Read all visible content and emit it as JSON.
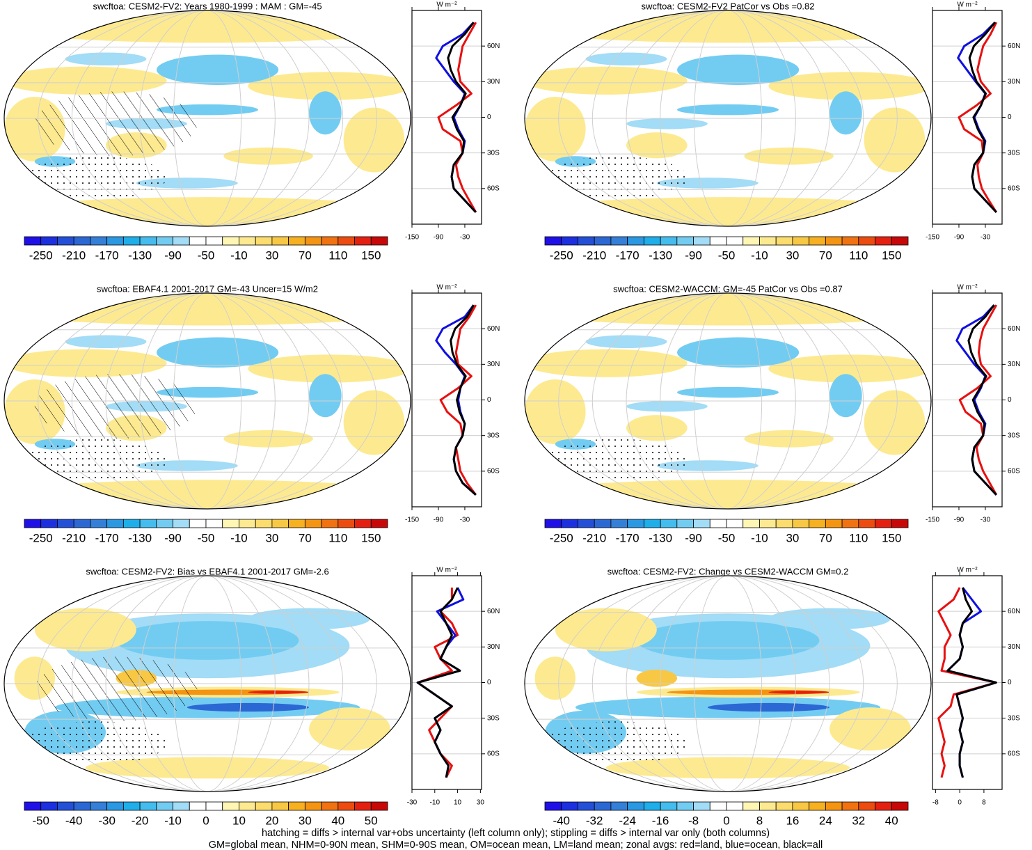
{
  "colormap": [
    "#2010e8",
    "#1c30e0",
    "#2450d8",
    "#2c68d4",
    "#3480d8",
    "#2a98e2",
    "#1eaeea",
    "#44bcee",
    "#72ccf2",
    "#a2dcf6",
    "#ffffff",
    "#ffffff",
    "#fff6b4",
    "#fdea90",
    "#fbdc6c",
    "#f8c844",
    "#f6b020",
    "#f49412",
    "#f07210",
    "#ec4c10",
    "#e42010",
    "#c80808"
  ],
  "chart_data": [
    {
      "type": "line",
      "title": "swcftoa: CESM2-FV2: Years 1980-1999 : MAM : GM=-45",
      "map": "mean",
      "hatch": true,
      "units": "W m⁻²",
      "xlim": [
        -150,
        8
      ],
      "xticks": [
        -150,
        -90,
        -30
      ],
      "ylim": [
        -90,
        90
      ],
      "yticks": [
        {
          "value": 60,
          "label": "60N"
        },
        {
          "value": 30,
          "label": "30N"
        },
        0,
        {
          "value": -30,
          "label": "30S"
        },
        {
          "value": -60,
          "label": "60S"
        }
      ],
      "colorbar_ticks": [
        -250,
        -210,
        -170,
        -130,
        -90,
        -50,
        -10,
        30,
        70,
        110,
        150
      ],
      "latitudes": [
        -80,
        -70,
        -60,
        -50,
        -40,
        -30,
        -20,
        -10,
        0,
        10,
        20,
        30,
        40,
        50,
        60,
        70,
        80
      ],
      "series": [
        {
          "color": "#e81010",
          "values": [
            -5,
            -20,
            -35,
            -45,
            -50,
            -35,
            -40,
            -80,
            -90,
            -50,
            -15,
            -40,
            -45,
            -40,
            -35,
            -20,
            -5
          ]
        },
        {
          "color": "#1010e0",
          "values": [
            -5,
            -30,
            -55,
            -60,
            -55,
            -35,
            -30,
            -45,
            -55,
            -40,
            -30,
            -55,
            -75,
            -95,
            -80,
            -35,
            -10
          ]
        },
        {
          "color": "#000000",
          "values": [
            -5,
            -30,
            -55,
            -60,
            -55,
            -35,
            -32,
            -48,
            -58,
            -40,
            -28,
            -50,
            -62,
            -68,
            -58,
            -30,
            -10
          ]
        }
      ]
    },
    {
      "type": "line",
      "title": "swcftoa: CESM2-FV2 PatCor vs Obs =0.82",
      "map": "mean",
      "hatch": false,
      "units": "W m⁻²",
      "xlim": [
        -150,
        8
      ],
      "xticks": [
        -150,
        -90,
        -30
      ],
      "ylim": [
        -90,
        90
      ],
      "yticks": [
        {
          "value": 60,
          "label": "60N"
        },
        {
          "value": 30,
          "label": "30N"
        },
        0,
        {
          "value": -30,
          "label": "30S"
        },
        {
          "value": -60,
          "label": "60S"
        }
      ],
      "colorbar_ticks": [
        -250,
        -210,
        -170,
        -130,
        -90,
        -50,
        -10,
        30,
        70,
        110,
        150
      ],
      "latitudes": [
        -80,
        -70,
        -60,
        -50,
        -40,
        -30,
        -20,
        -10,
        0,
        10,
        20,
        30,
        40,
        50,
        60,
        70,
        80
      ],
      "series": [
        {
          "color": "#e81010",
          "values": [
            -5,
            -22,
            -38,
            -45,
            -48,
            -35,
            -38,
            -78,
            -90,
            -50,
            -18,
            -40,
            -48,
            -42,
            -35,
            -18,
            -5
          ]
        },
        {
          "color": "#1010e0",
          "values": [
            -5,
            -30,
            -55,
            -60,
            -55,
            -35,
            -30,
            -45,
            -55,
            -40,
            -30,
            -52,
            -72,
            -92,
            -78,
            -35,
            -8
          ]
        },
        {
          "color": "#000000",
          "values": [
            -5,
            -30,
            -55,
            -60,
            -55,
            -35,
            -32,
            -47,
            -57,
            -40,
            -29,
            -50,
            -60,
            -66,
            -56,
            -30,
            -8
          ]
        }
      ]
    },
    {
      "type": "line",
      "title": "swcftoa: EBAF4.1 2001-2017 GM=-43 Uncer=15 W/m2",
      "map": "mean",
      "hatch": true,
      "units": "W m⁻²",
      "xlim": [
        -150,
        8
      ],
      "xticks": [
        -150,
        -90,
        -30
      ],
      "ylim": [
        -90,
        90
      ],
      "yticks": [
        {
          "value": 60,
          "label": "60N"
        },
        {
          "value": 30,
          "label": "30N"
        },
        0,
        {
          "value": -30,
          "label": "30S"
        },
        {
          "value": -60,
          "label": "60S"
        }
      ],
      "colorbar_ticks": [
        -250,
        -210,
        -170,
        -130,
        -90,
        -50,
        -10,
        30,
        70,
        110,
        150
      ],
      "latitudes": [
        -80,
        -70,
        -60,
        -50,
        -40,
        -30,
        -20,
        -10,
        0,
        10,
        20,
        30,
        40,
        50,
        60,
        70,
        80
      ],
      "series": [
        {
          "color": "#e81010",
          "values": [
            -5,
            -25,
            -40,
            -45,
            -50,
            -35,
            -40,
            -70,
            -85,
            -45,
            -15,
            -45,
            -50,
            -45,
            -40,
            -20,
            -5
          ]
        },
        {
          "color": "#1010e0",
          "values": [
            -5,
            -35,
            -50,
            -55,
            -50,
            -35,
            -30,
            -40,
            -45,
            -40,
            -30,
            -50,
            -75,
            -95,
            -80,
            -30,
            -10
          ]
        },
        {
          "color": "#000000",
          "values": [
            -5,
            -35,
            -50,
            -55,
            -50,
            -35,
            -30,
            -42,
            -48,
            -40,
            -28,
            -48,
            -58,
            -62,
            -52,
            -25,
            -10
          ]
        }
      ]
    },
    {
      "type": "line",
      "title": "swcftoa: CESM2-WACCM: GM=-45 PatCor vs Obs =0.87",
      "map": "mean",
      "hatch": false,
      "units": "W m⁻²",
      "xlim": [
        -150,
        8
      ],
      "xticks": [
        -150,
        -90,
        -30
      ],
      "ylim": [
        -90,
        90
      ],
      "yticks": [
        {
          "value": 60,
          "label": "60N"
        },
        {
          "value": 30,
          "label": "30N"
        },
        0,
        {
          "value": -30,
          "label": "30S"
        },
        {
          "value": -60,
          "label": "60S"
        }
      ],
      "colorbar_ticks": [
        -250,
        -210,
        -170,
        -130,
        -90,
        -50,
        -10,
        30,
        70,
        110,
        150
      ],
      "latitudes": [
        -80,
        -70,
        -60,
        -50,
        -40,
        -30,
        -20,
        -10,
        0,
        10,
        20,
        30,
        40,
        50,
        60,
        70,
        80
      ],
      "series": [
        {
          "color": "#e81010",
          "values": [
            -5,
            -20,
            -35,
            -45,
            -50,
            -35,
            -40,
            -75,
            -88,
            -48,
            -18,
            -40,
            -45,
            -42,
            -35,
            -20,
            -5
          ]
        },
        {
          "color": "#1010e0",
          "values": [
            -5,
            -30,
            -55,
            -60,
            -55,
            -35,
            -30,
            -45,
            -55,
            -40,
            -30,
            -55,
            -75,
            -95,
            -82,
            -35,
            -10
          ]
        },
        {
          "color": "#000000",
          "values": [
            -5,
            -30,
            -55,
            -60,
            -55,
            -35,
            -32,
            -48,
            -58,
            -42,
            -28,
            -50,
            -62,
            -68,
            -58,
            -30,
            -10
          ]
        }
      ]
    },
    {
      "type": "line",
      "title": "swcftoa: CESM2-FV2: Bias vs EBAF4.1 2001-2017 GM=-2.6",
      "map": "diff",
      "hatch": true,
      "units": "W m⁻²",
      "xlim": [
        -30,
        31
      ],
      "xticks": [
        -30,
        -10,
        10,
        30
      ],
      "ylim": [
        -90,
        90
      ],
      "yticks": [
        {
          "value": 60,
          "label": "60N"
        },
        {
          "value": 30,
          "label": "30N"
        },
        0,
        {
          "value": -30,
          "label": "30S"
        },
        {
          "value": -60,
          "label": "60S"
        }
      ],
      "colorbar_ticks": [
        -50,
        -40,
        -30,
        -20,
        -10,
        0,
        10,
        20,
        30,
        40,
        50
      ],
      "latitudes": [
        -80,
        -70,
        -60,
        -50,
        -40,
        -30,
        -20,
        -10,
        0,
        10,
        20,
        30,
        40,
        50,
        60,
        70,
        80
      ],
      "series": [
        {
          "color": "#e81010",
          "values": [
            0,
            5,
            -5,
            -10,
            -15,
            -5,
            5,
            -10,
            -25,
            5,
            -5,
            -10,
            10,
            5,
            -5,
            5,
            5
          ]
        },
        {
          "color": "#1010e0",
          "values": [
            0,
            2,
            -5,
            -10,
            -5,
            -10,
            5,
            -10,
            -25,
            12,
            -5,
            0,
            8,
            0,
            -8,
            15,
            10
          ]
        },
        {
          "color": "#000000",
          "values": [
            0,
            2,
            -5,
            -10,
            -5,
            -10,
            5,
            -10,
            -25,
            12,
            -5,
            0,
            5,
            0,
            -5,
            5,
            10
          ]
        }
      ]
    },
    {
      "type": "line",
      "title": "swcftoa: CESM2-FV2: Change vs CESM2-WACCM GM=0.2",
      "map": "diff",
      "hatch": false,
      "units": "W m⁻²",
      "xlim": [
        -9,
        14
      ],
      "xticks": [
        -8,
        0,
        8
      ],
      "ylim": [
        -90,
        90
      ],
      "yticks": [
        {
          "value": 60,
          "label": "60N"
        },
        {
          "value": 30,
          "label": "30N"
        },
        0,
        {
          "value": -30,
          "label": "30S"
        },
        {
          "value": -60,
          "label": "60S"
        }
      ],
      "colorbar_ticks": [
        -40,
        -32,
        -24,
        -16,
        -8,
        0,
        8,
        16,
        24,
        32,
        40
      ],
      "latitudes": [
        -80,
        -70,
        -60,
        -50,
        -40,
        -30,
        -20,
        -10,
        0,
        10,
        20,
        30,
        40,
        50,
        60,
        70,
        80
      ],
      "series": [
        {
          "color": "#e81010",
          "values": [
            -6,
            -5,
            -6,
            -5,
            -6,
            -7,
            -3,
            -2,
            12,
            -6,
            -5,
            -5,
            -3,
            -5,
            -7,
            -2,
            0
          ]
        },
        {
          "color": "#1010e0",
          "values": [
            1,
            0,
            0,
            1,
            0,
            1,
            0,
            -1,
            12,
            -4,
            0,
            1,
            0,
            1,
            7,
            4,
            1
          ]
        },
        {
          "color": "#000000",
          "values": [
            1,
            0,
            0,
            1,
            0,
            1,
            0,
            -1,
            12,
            -4,
            0,
            1,
            0,
            1,
            4,
            2,
            1
          ]
        }
      ]
    }
  ],
  "footer": [
    "hatching = diffs > internal var+obs uncertainty (left column only); stippling = diffs > internal var only (both columns)",
    "GM=global mean, NHM=0-90N mean, SHM=0-90S mean, OM=ocean mean, LM=land mean; zonal avgs: red=land, blue=ocean, black=all"
  ]
}
